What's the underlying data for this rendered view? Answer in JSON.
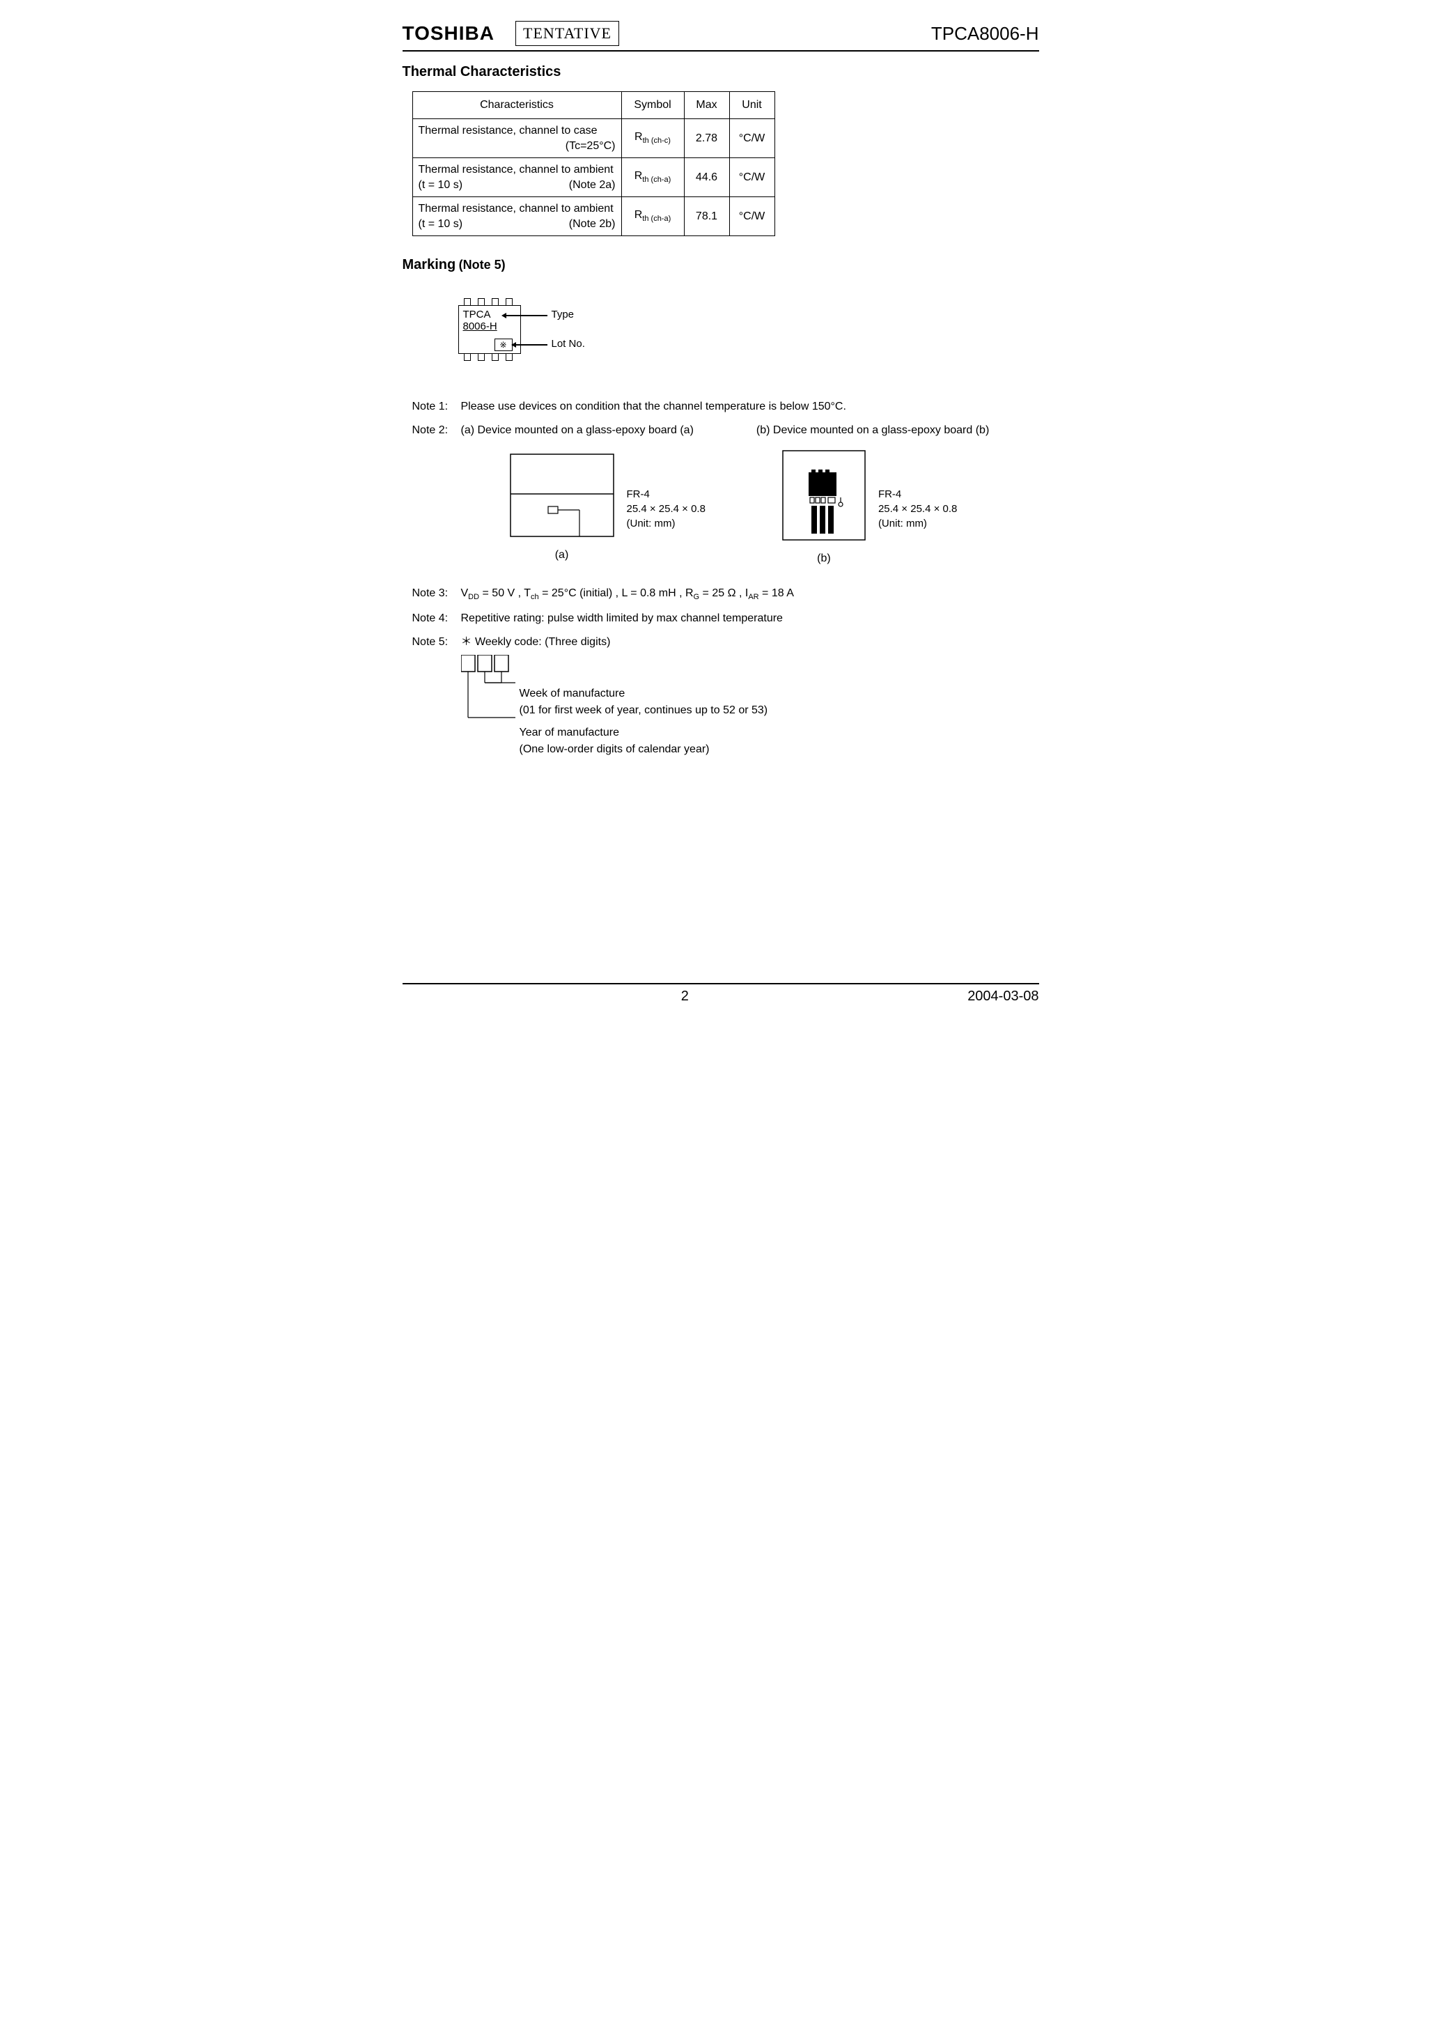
{
  "header": {
    "logo": "TOSHIBA",
    "tentative": "TENTATIVE",
    "part_number": "TPCA8006-H"
  },
  "sections": {
    "thermal_title": "Thermal Characteristics",
    "marking_title": "Marking",
    "marking_note_ref": "(Note 5)"
  },
  "thermal_table": {
    "headers": {
      "char": "Characteristics",
      "symbol": "Symbol",
      "max": "Max",
      "unit": "Unit"
    },
    "rows": [
      {
        "char_line1": "Thermal resistance, channel to case",
        "char_left": "",
        "char_right": "(Tc=25°C)",
        "symbol_main": "R",
        "symbol_sub": "th (ch-c)",
        "max": "2.78",
        "unit": "°C/W"
      },
      {
        "char_line1": "Thermal resistance, channel to ambient",
        "char_left": "(t = 10 s)",
        "char_right": "(Note 2a)",
        "symbol_main": "R",
        "symbol_sub": "th (ch-a)",
        "max": "44.6",
        "unit": "°C/W"
      },
      {
        "char_line1": "Thermal resistance, channel to ambient",
        "char_left": "(t = 10 s)",
        "char_right": "(Note 2b)",
        "symbol_main": "R",
        "symbol_sub": "th (ch-a)",
        "max": "78.1",
        "unit": "°C/W"
      }
    ]
  },
  "marking": {
    "chip_line1": "TPCA",
    "chip_line2": "8006-H",
    "lotno_symbol": "※",
    "callout_type": "Type",
    "callout_lotno": "Lot No."
  },
  "notes": {
    "n1_tag": "Note 1:",
    "n1_text": "Please use devices on condition that the channel temperature is below 150°C.",
    "n2_tag": "Note 2:",
    "n2_a": "(a) Device mounted on a glass-epoxy board (a)",
    "n2_b": "(b) Device mounted on a glass-epoxy board (b)",
    "board_fr4": "FR-4",
    "board_dims": "25.4 × 25.4 × 0.8",
    "board_unit": "(Unit: mm)",
    "board_a_cap": "(a)",
    "board_b_cap": "(b)",
    "n3_tag": "Note 3:",
    "n3_text_parts": {
      "p1": "V",
      "p1sub": "DD",
      "p1rest": " = 50 V ,   T",
      "p2sub": "ch",
      "p2rest": " = 25°C (initial) ,   L = 0.8 mH ,   R",
      "p3sub": "G",
      "p3rest": " = 25 Ω ,   I",
      "p4sub": "AR",
      "p4rest": " = 18 A"
    },
    "n4_tag": "Note 4:",
    "n4_text": "Repetitive rating: pulse width limited by max channel temperature",
    "n5_tag": "Note 5:",
    "n5_head": "＊ Weekly code: (Three digits)",
    "n5_week1": "Week of manufacture",
    "n5_week2": "(01 for first week of year, continues up to 52 or 53)",
    "n5_year1": "Year of manufacture",
    "n5_year2": "(One low-order digits of calendar year)"
  },
  "footer": {
    "page": "2",
    "date": "2004-03-08"
  },
  "colors": {
    "text": "#000000",
    "background": "#ffffff",
    "border": "#000000"
  }
}
